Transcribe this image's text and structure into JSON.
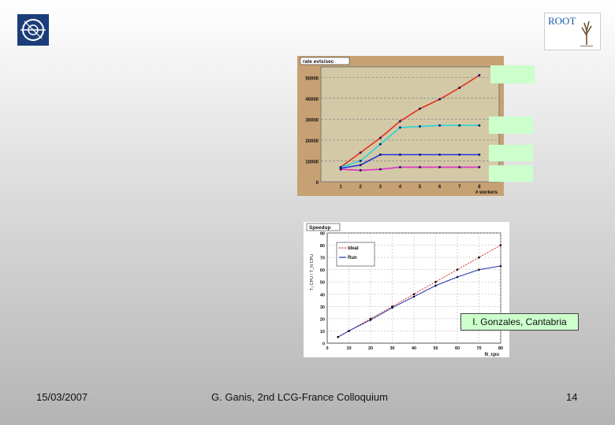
{
  "logos": {
    "root_text": "ROOT"
  },
  "rate_chart": {
    "title": "rate evts/sec",
    "xlabel": "# workers",
    "y_ticks": [
      "0",
      "10000",
      "20000",
      "30000",
      "40000",
      "50000"
    ],
    "x_ticks": [
      "1",
      "2",
      "3",
      "4",
      "5",
      "6",
      "7",
      "8"
    ]
  },
  "speedup_chart": {
    "title": "Speedup",
    "ylabel": "T₁ CPU / T_N CPU",
    "xlabel": "N_cpu",
    "legend": [
      "Ideal",
      "Run"
    ],
    "y_ticks": [
      "0",
      "10",
      "20",
      "30",
      "40",
      "50",
      "60",
      "70",
      "80",
      "90"
    ],
    "x_ticks": [
      "0",
      "10",
      "20",
      "30",
      "40",
      "50",
      "60",
      "70",
      "80"
    ]
  },
  "credit": "I. Gonzales, Cantabria",
  "footer": {
    "date": "15/03/2007",
    "title": "G. Ganis, 2nd LCG-France Colloquium",
    "page": "14"
  },
  "chart_data": [
    {
      "type": "line",
      "title": "rate evts/sec",
      "xlabel": "# workers",
      "ylabel": "",
      "x": [
        1,
        2,
        3,
        4,
        5,
        6,
        7,
        8
      ],
      "xlim": [
        0,
        9
      ],
      "ylim": [
        0,
        55000
      ],
      "series": [
        {
          "color": "#e0301e",
          "values": [
            7000,
            14000,
            21000,
            29000,
            35000,
            39500,
            45000,
            51000
          ]
        },
        {
          "color": "#22d6d6",
          "values": [
            7000,
            10000,
            18000,
            26000,
            26500,
            27000,
            27000,
            27000
          ]
        },
        {
          "color": "#2233dd",
          "values": [
            6500,
            8000,
            13000,
            13000,
            13000,
            13000,
            13000,
            13000
          ]
        },
        {
          "color": "#e030c8",
          "values": [
            6000,
            5500,
            6000,
            7000,
            7000,
            7000,
            7000,
            7000
          ]
        }
      ]
    },
    {
      "type": "line",
      "title": "Speedup",
      "xlabel": "N_cpu",
      "ylabel": "T₁ CPU / T_N CPU",
      "xlim": [
        0,
        80
      ],
      "ylim": [
        0,
        90
      ],
      "series": [
        {
          "name": "Ideal",
          "color": "#d03020",
          "x": [
            5,
            10,
            20,
            30,
            40,
            50,
            60,
            70,
            80
          ],
          "values": [
            5,
            10,
            20,
            30,
            40,
            50,
            60,
            70,
            80
          ]
        },
        {
          "name": "Run",
          "color": "#2030b0",
          "x": [
            5,
            10,
            20,
            30,
            40,
            50,
            60,
            70,
            80
          ],
          "values": [
            5,
            10,
            19,
            29,
            38,
            47,
            54,
            60,
            63
          ]
        }
      ]
    }
  ]
}
